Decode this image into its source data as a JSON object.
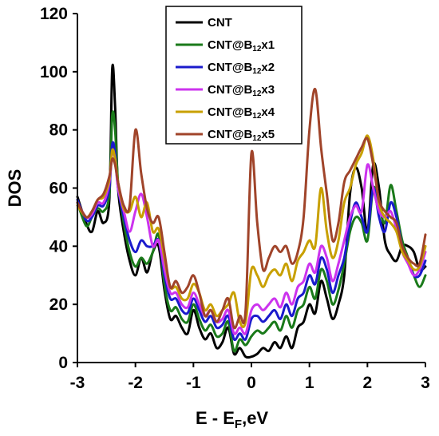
{
  "chart_data": {
    "type": "line",
    "xlabel_main": "E - E",
    "xlabel_sub": "F",
    "xlabel_tail": ",eV",
    "ylabel": "DOS",
    "xlim": [
      -3,
      3
    ],
    "ylim": [
      0,
      120
    ],
    "x_ticks": [
      "-3",
      "-2",
      "-1",
      "0",
      "1",
      "2",
      "3"
    ],
    "y_ticks": [
      "0",
      "20",
      "40",
      "60",
      "80",
      "100",
      "120"
    ],
    "legend_position": "top-center",
    "series": [
      {
        "name": "CNT",
        "label_main": "CNT",
        "label_sub": "",
        "label_tail": "",
        "color": "#000000",
        "x": [
          -3.0,
          -2.85,
          -2.75,
          -2.65,
          -2.55,
          -2.45,
          -2.4,
          -2.35,
          -2.3,
          -2.2,
          -2.1,
          -2.0,
          -1.9,
          -1.8,
          -1.7,
          -1.6,
          -1.5,
          -1.4,
          -1.3,
          -1.2,
          -1.1,
          -1.0,
          -0.9,
          -0.8,
          -0.7,
          -0.6,
          -0.5,
          -0.4,
          -0.3,
          -0.2,
          -0.1,
          0.0,
          0.1,
          0.2,
          0.3,
          0.4,
          0.5,
          0.6,
          0.7,
          0.8,
          0.9,
          1.0,
          1.1,
          1.2,
          1.3,
          1.4,
          1.5,
          1.6,
          1.7,
          1.8,
          1.9,
          2.0,
          2.1,
          2.2,
          2.3,
          2.4,
          2.5,
          2.6,
          2.7,
          2.8,
          2.9,
          3.0
        ],
        "y": [
          57,
          48,
          45,
          52,
          48,
          56,
          101,
          88,
          60,
          45,
          35,
          30,
          36,
          31,
          38,
          40,
          25,
          15,
          16,
          12,
          10,
          18,
          12,
          8,
          10,
          5,
          7,
          12,
          3,
          5,
          2,
          2,
          3,
          5,
          4,
          7,
          5,
          9,
          5,
          12,
          14,
          20,
          17,
          28,
          22,
          15,
          20,
          30,
          58,
          67,
          60,
          45,
          68,
          60,
          42,
          37,
          35,
          40,
          40,
          38,
          32,
          33
        ]
      },
      {
        "name": "CNT@B12x1",
        "label_main": "CNT@B",
        "label_sub": "12",
        "label_tail": "x1",
        "color": "#1a7a1a",
        "x": [
          -3.0,
          -2.85,
          -2.75,
          -2.65,
          -2.55,
          -2.45,
          -2.4,
          -2.35,
          -2.3,
          -2.2,
          -2.1,
          -2.0,
          -1.9,
          -1.8,
          -1.7,
          -1.6,
          -1.5,
          -1.4,
          -1.3,
          -1.2,
          -1.1,
          -1.0,
          -0.9,
          -0.8,
          -0.7,
          -0.6,
          -0.5,
          -0.4,
          -0.3,
          -0.2,
          -0.1,
          0.0,
          0.1,
          0.2,
          0.3,
          0.4,
          0.5,
          0.6,
          0.7,
          0.8,
          0.9,
          1.0,
          1.1,
          1.2,
          1.3,
          1.4,
          1.5,
          1.6,
          1.7,
          1.8,
          1.9,
          2.0,
          2.1,
          2.2,
          2.3,
          2.4,
          2.5,
          2.6,
          2.7,
          2.8,
          2.9,
          3.0
        ],
        "y": [
          55,
          47,
          50,
          53,
          52,
          58,
          85,
          80,
          62,
          48,
          38,
          33,
          36,
          34,
          38,
          44,
          27,
          18,
          19,
          15,
          14,
          20,
          15,
          11,
          13,
          9,
          10,
          14,
          4,
          8,
          6,
          9,
          11,
          10,
          12,
          14,
          11,
          16,
          12,
          18,
          20,
          26,
          22,
          32,
          28,
          20,
          25,
          34,
          45,
          50,
          48,
          42,
          60,
          54,
          48,
          61,
          52,
          42,
          36,
          30,
          26,
          30
        ]
      },
      {
        "name": "CNT@B12x2",
        "label_main": "CNT@B",
        "label_sub": "12",
        "label_tail": "x2",
        "color": "#1a1acc",
        "x": [
          -3.0,
          -2.85,
          -2.75,
          -2.65,
          -2.55,
          -2.45,
          -2.4,
          -2.35,
          -2.3,
          -2.2,
          -2.1,
          -2.0,
          -1.9,
          -1.8,
          -1.7,
          -1.6,
          -1.5,
          -1.4,
          -1.3,
          -1.2,
          -1.1,
          -1.0,
          -0.9,
          -0.8,
          -0.7,
          -0.6,
          -0.5,
          -0.4,
          -0.3,
          -0.2,
          -0.1,
          0.0,
          0.1,
          0.2,
          0.3,
          0.4,
          0.5,
          0.6,
          0.7,
          0.8,
          0.9,
          1.0,
          1.1,
          1.2,
          1.3,
          1.4,
          1.5,
          1.6,
          1.7,
          1.8,
          1.9,
          2.0,
          2.1,
          2.2,
          2.3,
          2.4,
          2.5,
          2.6,
          2.7,
          2.8,
          2.9,
          3.0
        ],
        "y": [
          56,
          49,
          50,
          54,
          54,
          60,
          75,
          72,
          60,
          50,
          42,
          38,
          42,
          40,
          40,
          42,
          30,
          22,
          22,
          18,
          17,
          22,
          18,
          14,
          16,
          12,
          13,
          16,
          8,
          10,
          8,
          15,
          16,
          14,
          16,
          18,
          15,
          20,
          16,
          22,
          24,
          30,
          27,
          36,
          32,
          24,
          30,
          36,
          48,
          55,
          50,
          45,
          60,
          50,
          45,
          55,
          50,
          40,
          35,
          30,
          30,
          35
        ]
      },
      {
        "name": "CNT@B12x3",
        "label_main": "CNT@B",
        "label_sub": "12",
        "label_tail": "x3",
        "color": "#cc33ee",
        "x": [
          -3.0,
          -2.85,
          -2.75,
          -2.65,
          -2.55,
          -2.45,
          -2.4,
          -2.35,
          -2.3,
          -2.2,
          -2.1,
          -2.0,
          -1.9,
          -1.8,
          -1.7,
          -1.6,
          -1.5,
          -1.4,
          -1.3,
          -1.2,
          -1.1,
          -1.0,
          -0.9,
          -0.8,
          -0.7,
          -0.6,
          -0.5,
          -0.4,
          -0.3,
          -0.2,
          -0.1,
          0.0,
          0.1,
          0.2,
          0.3,
          0.4,
          0.5,
          0.6,
          0.7,
          0.8,
          0.9,
          1.0,
          1.1,
          1.2,
          1.3,
          1.4,
          1.5,
          1.6,
          1.7,
          1.8,
          1.9,
          2.0,
          2.1,
          2.2,
          2.3,
          2.4,
          2.5,
          2.6,
          2.7,
          2.8,
          2.9,
          3.0
        ],
        "y": [
          55,
          50,
          51,
          55,
          55,
          62,
          72,
          70,
          60,
          52,
          45,
          52,
          58,
          50,
          40,
          42,
          32,
          24,
          24,
          20,
          19,
          24,
          20,
          16,
          18,
          14,
          15,
          18,
          10,
          12,
          10,
          18,
          20,
          18,
          20,
          22,
          19,
          24,
          20,
          26,
          28,
          34,
          31,
          40,
          36,
          28,
          34,
          42,
          50,
          54,
          52,
          68,
          60,
          52,
          50,
          52,
          46,
          38,
          34,
          30,
          32,
          38
        ]
      },
      {
        "name": "CNT@B12x4",
        "label_main": "CNT@B",
        "label_sub": "12",
        "label_tail": "x4",
        "color": "#c8a000",
        "x": [
          -3.0,
          -2.85,
          -2.75,
          -2.65,
          -2.55,
          -2.45,
          -2.4,
          -2.35,
          -2.3,
          -2.2,
          -2.1,
          -2.0,
          -1.9,
          -1.8,
          -1.7,
          -1.6,
          -1.5,
          -1.4,
          -1.3,
          -1.2,
          -1.1,
          -1.0,
          -0.9,
          -0.8,
          -0.7,
          -0.6,
          -0.5,
          -0.4,
          -0.3,
          -0.2,
          -0.1,
          0.0,
          0.1,
          0.2,
          0.3,
          0.4,
          0.5,
          0.6,
          0.7,
          0.8,
          0.9,
          1.0,
          1.1,
          1.2,
          1.3,
          1.4,
          1.5,
          1.6,
          1.7,
          1.8,
          1.9,
          2.0,
          2.1,
          2.2,
          2.3,
          2.4,
          2.5,
          2.6,
          2.7,
          2.8,
          2.9,
          3.0
        ],
        "y": [
          54,
          50,
          52,
          56,
          57,
          63,
          73,
          70,
          62,
          53,
          52,
          57,
          50,
          55,
          45,
          46,
          36,
          26,
          26,
          22,
          22,
          27,
          24,
          18,
          20,
          16,
          18,
          20,
          24,
          14,
          14,
          32,
          30,
          26,
          30,
          32,
          30,
          34,
          28,
          35,
          38,
          42,
          40,
          60,
          45,
          36,
          42,
          55,
          60,
          68,
          72,
          78,
          70,
          55,
          50,
          48,
          45,
          38,
          35,
          32,
          33,
          40
        ]
      },
      {
        "name": "CNT@B12x5",
        "label_main": "CNT@B",
        "label_sub": "12",
        "label_tail": "x5",
        "color": "#a0442a",
        "x": [
          -3.0,
          -2.85,
          -2.75,
          -2.65,
          -2.55,
          -2.45,
          -2.4,
          -2.35,
          -2.3,
          -2.2,
          -2.1,
          -2.0,
          -1.9,
          -1.8,
          -1.7,
          -1.6,
          -1.5,
          -1.4,
          -1.3,
          -1.2,
          -1.1,
          -1.0,
          -0.9,
          -0.8,
          -0.7,
          -0.6,
          -0.5,
          -0.4,
          -0.3,
          -0.2,
          -0.1,
          0.0,
          0.1,
          0.2,
          0.3,
          0.4,
          0.5,
          0.6,
          0.7,
          0.8,
          0.9,
          1.0,
          1.1,
          1.2,
          1.3,
          1.4,
          1.5,
          1.6,
          1.7,
          1.8,
          1.9,
          2.0,
          2.1,
          2.2,
          2.3,
          2.4,
          2.5,
          2.6,
          2.7,
          2.8,
          2.9,
          3.0
        ],
        "y": [
          55,
          50,
          52,
          56,
          58,
          64,
          70,
          68,
          62,
          54,
          54,
          80,
          65,
          53,
          48,
          50,
          38,
          26,
          28,
          24,
          26,
          30,
          24,
          16,
          18,
          14,
          18,
          22,
          12,
          16,
          18,
          72,
          48,
          32,
          36,
          40,
          38,
          40,
          34,
          38,
          50,
          80,
          94,
          74,
          58,
          42,
          48,
          62,
          66,
          70,
          74,
          77,
          68,
          56,
          52,
          50,
          48,
          40,
          36,
          34,
          34,
          44
        ]
      }
    ]
  }
}
